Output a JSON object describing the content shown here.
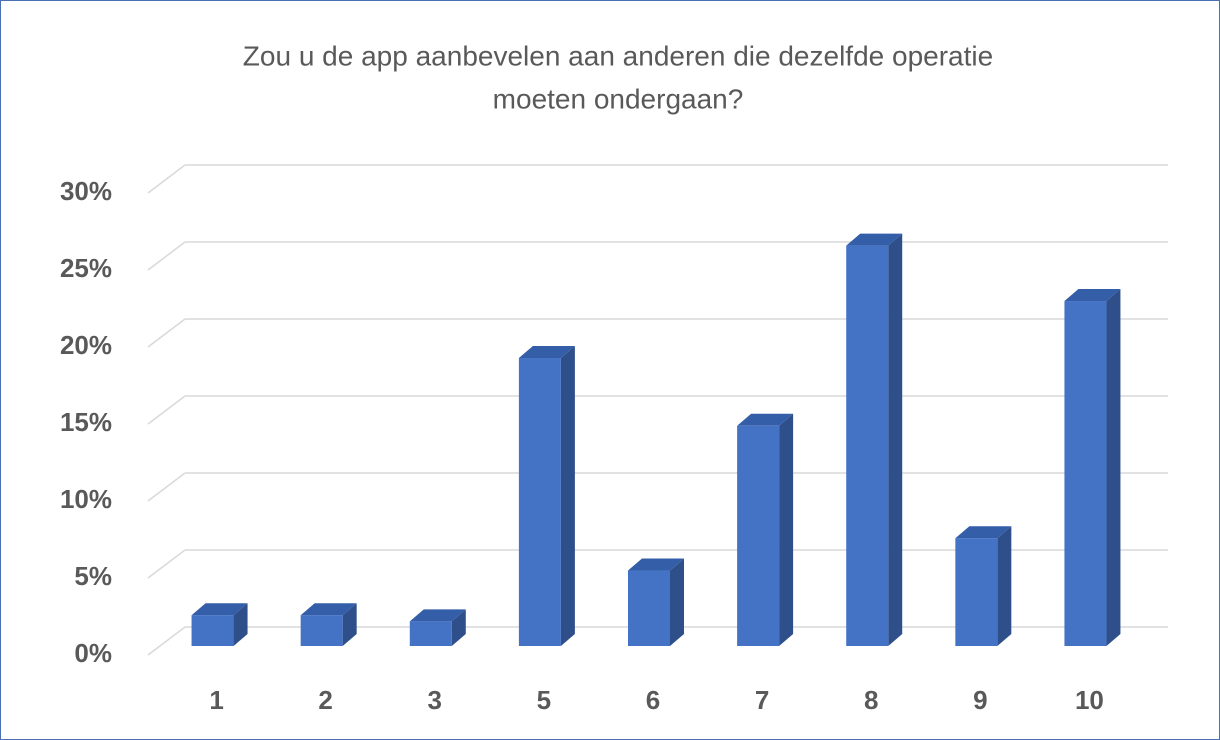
{
  "chart_data": {
    "type": "bar3d",
    "title": [
      "Zou u de app aanbevelen aan anderen die dezelfde operatie",
      "moeten ondergaan?"
    ],
    "categories": [
      "1",
      "2",
      "3",
      "5",
      "6",
      "7",
      "8",
      "9",
      "10"
    ],
    "values": [
      2,
      2,
      1.6,
      18.7,
      4.9,
      14.3,
      26,
      7,
      22.4
    ],
    "color": "#4472c4",
    "ylim": [
      0,
      30
    ],
    "yticks": [
      {
        "value": 0,
        "label": "0%"
      },
      {
        "value": 5,
        "label": "5%"
      },
      {
        "value": 10,
        "label": "10%"
      },
      {
        "value": 15,
        "label": "15%"
      },
      {
        "value": 20,
        "label": "20%"
      },
      {
        "value": 25,
        "label": "25%"
      },
      {
        "value": 30,
        "label": "30%"
      }
    ],
    "grid": true
  }
}
